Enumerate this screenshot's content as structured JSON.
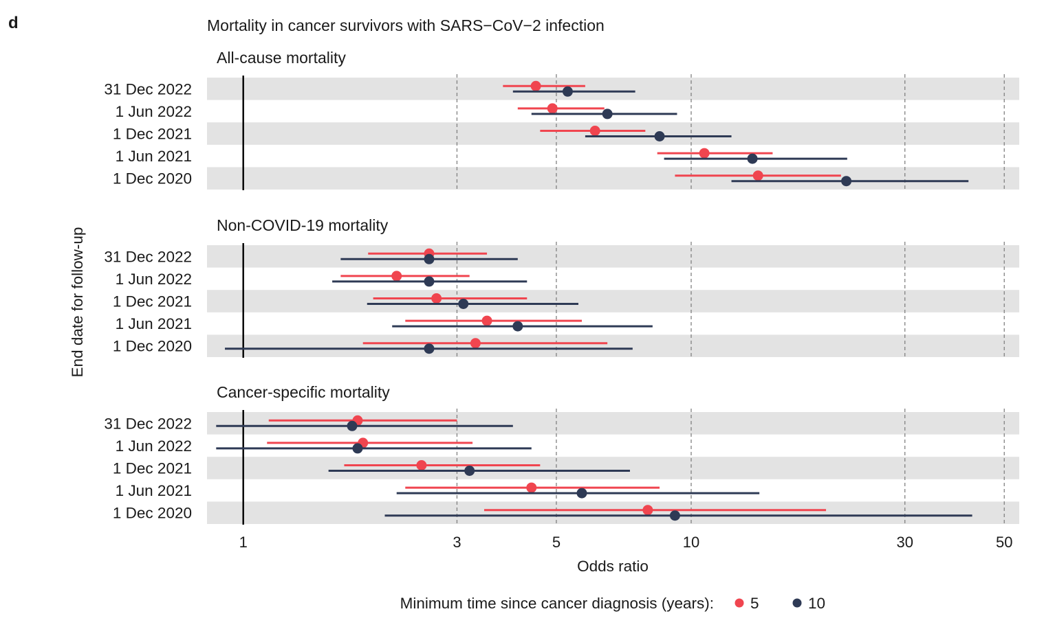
{
  "panel_label": "d",
  "chart_data": {
    "type": "scatter",
    "subtype": "forest-plot",
    "title": "Mortality in cancer survivors with SARS−CoV−2 infection",
    "xlabel": "Odds ratio",
    "ylabel": "End date for follow-up",
    "xscale": "log",
    "xlim": [
      0.83,
      54
    ],
    "xticks": [
      1,
      3,
      5,
      10,
      30,
      50
    ],
    "xtick_labels": [
      "1",
      "3",
      "5",
      "10",
      "30",
      "50"
    ],
    "reference_line": 1,
    "dashed_gridlines": [
      3,
      5,
      10,
      30,
      50
    ],
    "categories": [
      "31 Dec 2022",
      "1 Jun 2022",
      "1 Dec 2021",
      "1 Jun 2021",
      "1 Dec 2020"
    ],
    "legend": {
      "title": "Minimum time since cancer diagnosis (years):",
      "position": "bottom",
      "entries": [
        {
          "label": "5",
          "color": "#f0454f"
        },
        {
          "label": "10",
          "color": "#2e3a55"
        }
      ]
    },
    "facets": [
      {
        "title": "All-cause mortality",
        "series": [
          {
            "name": "5",
            "color": "#f0454f",
            "estimate": [
              4.5,
              4.9,
              6.1,
              10.7,
              14.1
            ],
            "lower": [
              3.8,
              4.1,
              4.6,
              8.4,
              9.2
            ],
            "upper": [
              5.8,
              6.4,
              7.9,
              15.2,
              21.6
            ]
          },
          {
            "name": "10",
            "color": "#2e3a55",
            "estimate": [
              5.3,
              6.5,
              8.5,
              13.7,
              22.2
            ],
            "lower": [
              4.0,
              4.4,
              5.8,
              8.7,
              12.3
            ],
            "upper": [
              7.5,
              9.3,
              12.3,
              22.3,
              41.6
            ]
          }
        ]
      },
      {
        "title": "Non-COVID-19 mortality",
        "series": [
          {
            "name": "5",
            "color": "#f0454f",
            "estimate": [
              2.6,
              2.2,
              2.7,
              3.5,
              3.3
            ],
            "lower": [
              1.9,
              1.65,
              1.95,
              2.3,
              1.85
            ],
            "upper": [
              3.5,
              3.2,
              4.3,
              5.7,
              6.5
            ]
          },
          {
            "name": "10",
            "color": "#2e3a55",
            "estimate": [
              2.6,
              2.6,
              3.1,
              4.1,
              2.6
            ],
            "lower": [
              1.65,
              1.58,
              1.89,
              2.15,
              0.91
            ],
            "upper": [
              4.1,
              4.3,
              5.6,
              8.2,
              7.4
            ]
          }
        ]
      },
      {
        "title": "Cancer-specific mortality",
        "series": [
          {
            "name": "5",
            "color": "#f0454f",
            "estimate": [
              1.8,
              1.85,
              2.5,
              4.4,
              8.0
            ],
            "lower": [
              1.14,
              1.13,
              1.68,
              2.3,
              3.45
            ],
            "upper": [
              3.0,
              3.25,
              4.6,
              8.5,
              20.0
            ]
          },
          {
            "name": "10",
            "color": "#2e3a55",
            "estimate": [
              1.75,
              1.8,
              3.2,
              5.7,
              9.2
            ],
            "lower": [
              0.87,
              0.87,
              1.55,
              2.2,
              2.07
            ],
            "upper": [
              4.0,
              4.4,
              7.3,
              14.2,
              42.4
            ]
          }
        ]
      }
    ]
  }
}
